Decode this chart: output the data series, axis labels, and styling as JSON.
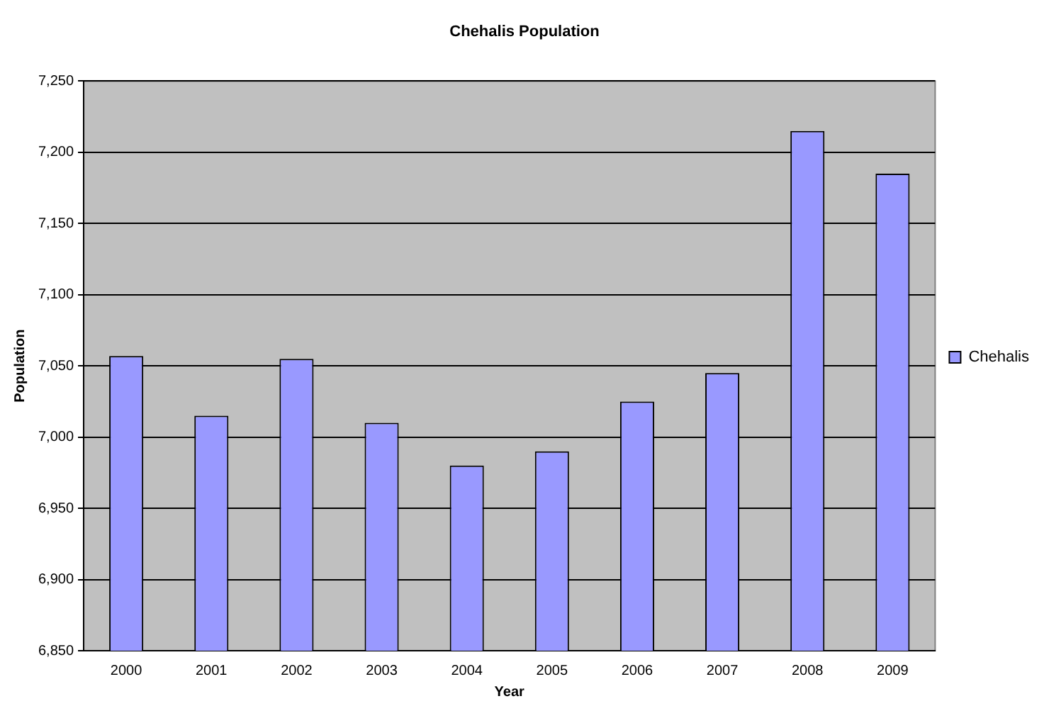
{
  "chart_data": {
    "type": "bar",
    "title": "Chehalis Population",
    "xlabel": "Year",
    "ylabel": "Population",
    "categories": [
      "2000",
      "2001",
      "2002",
      "2003",
      "2004",
      "2005",
      "2006",
      "2007",
      "2008",
      "2009"
    ],
    "series": [
      {
        "name": "Chehalis",
        "color": "#9999ff",
        "values": [
          7057,
          7015,
          7055,
          7010,
          6980,
          6990,
          7025,
          7045,
          7215,
          7185
        ]
      }
    ],
    "ylim": [
      6850,
      7250
    ],
    "yticks": [
      {
        "value": 6850,
        "label": "6,850"
      },
      {
        "value": 6900,
        "label": "6,900"
      },
      {
        "value": 6950,
        "label": "6,950"
      },
      {
        "value": 7000,
        "label": "7,000"
      },
      {
        "value": 7050,
        "label": "7,050"
      },
      {
        "value": 7100,
        "label": "7,100"
      },
      {
        "value": 7150,
        "label": "7,150"
      },
      {
        "value": 7200,
        "label": "7,200"
      },
      {
        "value": 7250,
        "label": "7,250"
      }
    ],
    "grid": "y",
    "legend": "right"
  }
}
